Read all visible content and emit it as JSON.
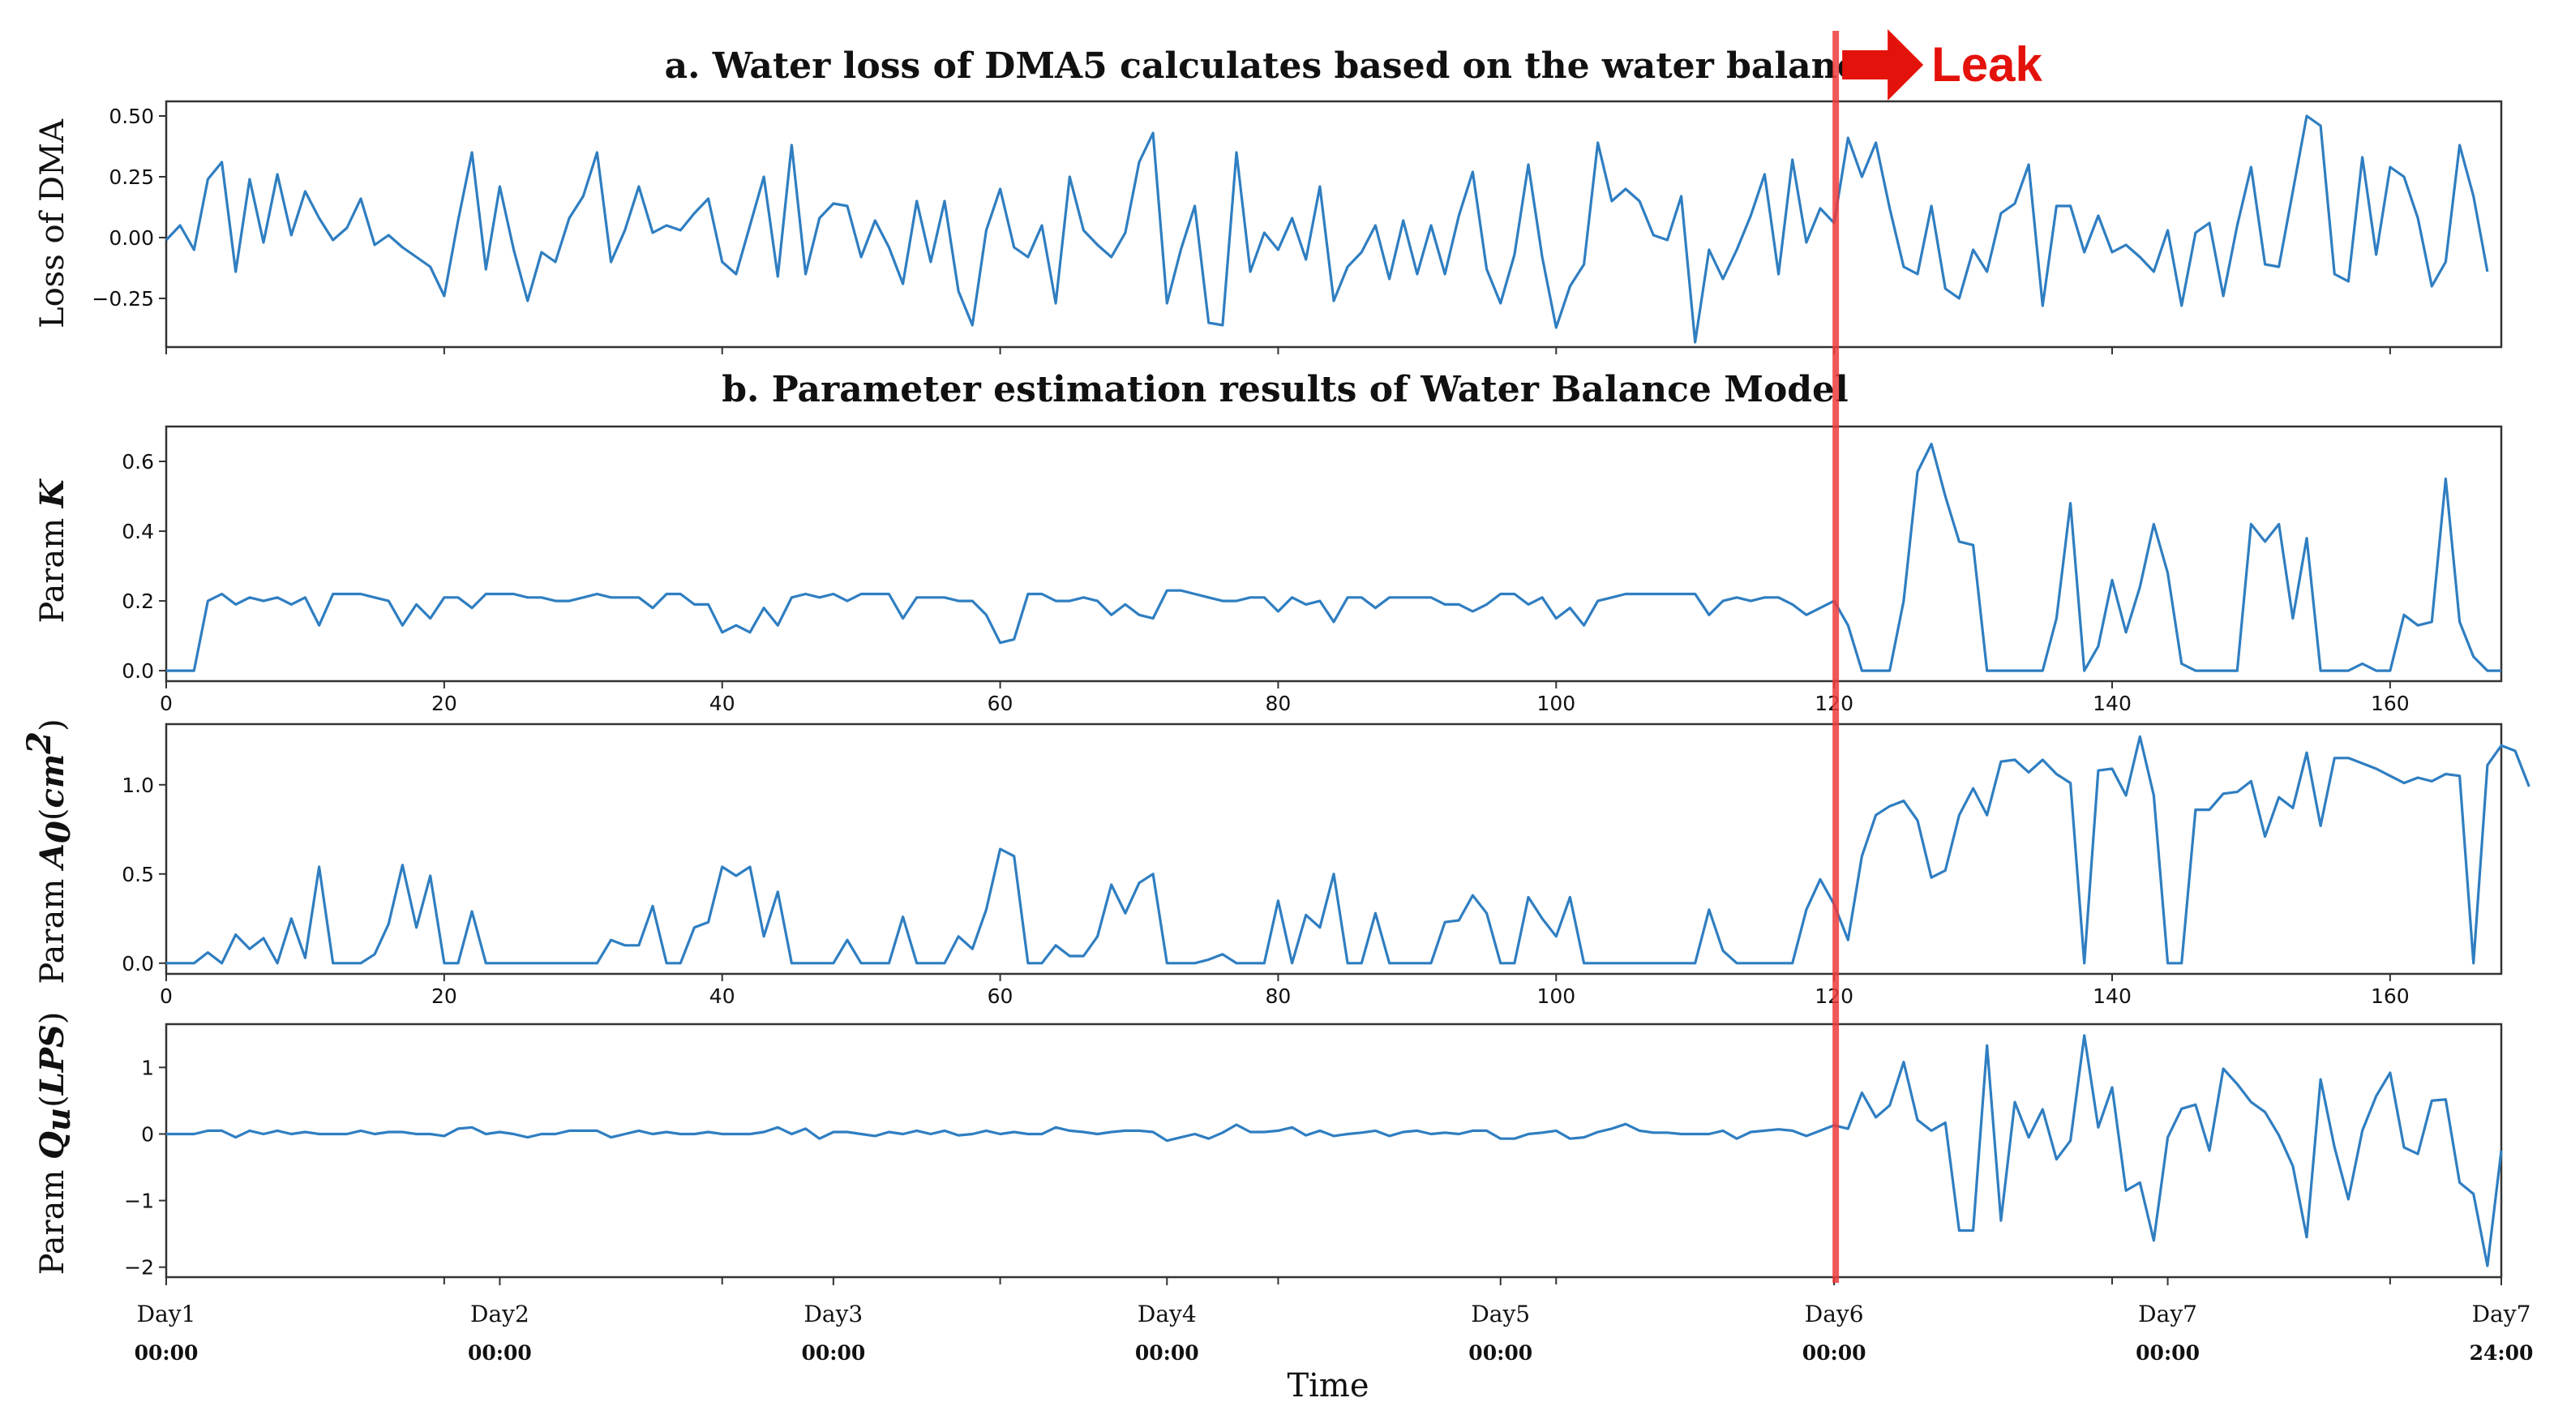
{
  "figure_title_a": "a. Water loss of  DMA5 calculates based on the water balance",
  "figure_title_b": "b. Parameter estimation results of Water Balance Model",
  "leak_label": "Leak",
  "x_axis_label": "Time",
  "colors": {
    "series": "#2f7ec1",
    "leak_line": "#ee3b3b",
    "leak_arrow": "#e3120b",
    "axes": "#333333"
  },
  "time_ticks": [
    {
      "day": "Day1",
      "time": "00:00",
      "hour": 0
    },
    {
      "day": "Day2",
      "time": "00:00",
      "hour": 24
    },
    {
      "day": "Day3",
      "time": "00:00",
      "hour": 48
    },
    {
      "day": "Day4",
      "time": "00:00",
      "hour": 72
    },
    {
      "day": "Day5",
      "time": "00:00",
      "hour": 96
    },
    {
      "day": "Day6",
      "time": "00:00",
      "hour": 120
    },
    {
      "day": "Day7",
      "time": "00:00",
      "hour": 144
    },
    {
      "day": "Day7",
      "time": "24:00",
      "hour": 168
    }
  ],
  "leak_hour": 120,
  "chart_data": [
    {
      "type": "line",
      "panel": "a",
      "title": "a. Water loss of  DMA5 calculates based on the water balance",
      "ylabel": "Loss of  DMA",
      "ylabel_parts": [
        "Loss of  DMA"
      ],
      "xlim": [
        0,
        168
      ],
      "ylim": [
        -0.45,
        0.56
      ],
      "yticks": [
        -0.25,
        0,
        0.25,
        0.5
      ],
      "ytick_labels": [
        "−0.25",
        "0.00",
        "0.25",
        "0.50"
      ],
      "show_xtick_labels": false,
      "x_start": 0,
      "values": [
        -0.01,
        0.05,
        -0.05,
        0.24,
        0.31,
        -0.14,
        0.24,
        -0.02,
        0.26,
        0.01,
        0.19,
        0.08,
        -0.01,
        0.04,
        0.16,
        -0.03,
        0.01,
        -0.04,
        -0.08,
        -0.12,
        -0.24,
        0.07,
        0.35,
        -0.13,
        0.21,
        -0.05,
        -0.26,
        -0.06,
        -0.1,
        0.08,
        0.17,
        0.35,
        -0.1,
        0.03,
        0.21,
        0.02,
        0.05,
        0.03,
        0.1,
        0.16,
        -0.1,
        -0.15,
        0.05,
        0.25,
        -0.16,
        0.38,
        -0.15,
        0.08,
        0.14,
        0.13,
        -0.08,
        0.07,
        -0.04,
        -0.19,
        0.15,
        -0.1,
        0.15,
        -0.22,
        -0.36,
        0.03,
        0.2,
        -0.04,
        -0.08,
        0.05,
        -0.27,
        0.25,
        0.03,
        -0.03,
        -0.08,
        0.02,
        0.31,
        0.43,
        -0.27,
        -0.05,
        0.13,
        -0.35,
        -0.36,
        0.35,
        -0.14,
        0.02,
        -0.05,
        0.08,
        -0.09,
        0.21,
        -0.26,
        -0.12,
        -0.06,
        0.05,
        -0.17,
        0.07,
        -0.15,
        0.05,
        -0.15,
        0.09,
        0.27,
        -0.13,
        -0.27,
        -0.07,
        0.3,
        -0.08,
        -0.37,
        -0.2,
        -0.11,
        0.39,
        0.15,
        0.2,
        0.15,
        0.01,
        -0.01,
        0.17,
        -0.43,
        -0.05,
        -0.17,
        -0.05,
        0.09,
        0.26,
        -0.15,
        0.32,
        -0.02,
        0.12,
        0.06,
        0.41,
        0.25,
        0.39,
        0.12,
        -0.12,
        -0.15,
        0.13,
        -0.21,
        -0.25,
        -0.05,
        -0.14,
        0.1,
        0.14,
        0.3,
        -0.28,
        0.13,
        0.13,
        -0.06,
        0.09,
        -0.06,
        -0.03,
        -0.08,
        -0.14,
        0.03,
        -0.28,
        0.02,
        0.06,
        -0.24,
        0.05,
        0.29,
        -0.11,
        -0.12,
        0.19,
        0.5,
        0.46,
        -0.15,
        -0.18,
        0.33,
        -0.07,
        0.29,
        0.25,
        0.08,
        -0.2,
        -0.1,
        0.38,
        0.17,
        -0.14
      ]
    },
    {
      "type": "line",
      "panel": "b1",
      "ylabel": "Param K",
      "ylabel_parts": [
        "Param ",
        "K"
      ],
      "xlim": [
        0,
        168
      ],
      "ylim": [
        -0.03,
        0.7
      ],
      "yticks": [
        0,
        0.2,
        0.4,
        0.6
      ],
      "ytick_labels": [
        "0.0",
        "0.2",
        "0.4",
        "0.6"
      ],
      "xticks": [
        0,
        20,
        40,
        60,
        80,
        100,
        120,
        140,
        160
      ],
      "xtick_labels": [
        "0",
        "20",
        "40",
        "60",
        "80",
        "100",
        "120",
        "140",
        "160"
      ],
      "show_xtick_labels": true,
      "x_start": 0,
      "values": [
        0,
        0,
        0,
        0.2,
        0.22,
        0.19,
        0.21,
        0.2,
        0.21,
        0.19,
        0.21,
        0.13,
        0.22,
        0.22,
        0.22,
        0.21,
        0.2,
        0.13,
        0.19,
        0.15,
        0.21,
        0.21,
        0.18,
        0.22,
        0.22,
        0.22,
        0.21,
        0.21,
        0.2,
        0.2,
        0.21,
        0.22,
        0.21,
        0.21,
        0.21,
        0.18,
        0.22,
        0.22,
        0.19,
        0.19,
        0.11,
        0.13,
        0.11,
        0.18,
        0.13,
        0.21,
        0.22,
        0.21,
        0.22,
        0.2,
        0.22,
        0.22,
        0.22,
        0.15,
        0.21,
        0.21,
        0.21,
        0.2,
        0.2,
        0.16,
        0.08,
        0.09,
        0.22,
        0.22,
        0.2,
        0.2,
        0.21,
        0.2,
        0.16,
        0.19,
        0.16,
        0.15,
        0.23,
        0.23,
        0.22,
        0.21,
        0.2,
        0.2,
        0.21,
        0.21,
        0.17,
        0.21,
        0.19,
        0.2,
        0.14,
        0.21,
        0.21,
        0.18,
        0.21,
        0.21,
        0.21,
        0.21,
        0.19,
        0.19,
        0.17,
        0.19,
        0.22,
        0.22,
        0.19,
        0.21,
        0.15,
        0.18,
        0.13,
        0.2,
        0.21,
        0.22,
        0.22,
        0.22,
        0.22,
        0.22,
        0.22,
        0.16,
        0.2,
        0.21,
        0.2,
        0.21,
        0.21,
        0.19,
        0.16,
        0.18,
        0.2,
        0.13,
        0,
        0,
        0,
        0.2,
        0.57,
        0.65,
        0.5,
        0.37,
        0.36,
        0,
        0,
        0,
        0,
        0,
        0.15,
        0.48,
        0,
        0.07,
        0.26,
        0.11,
        0.24,
        0.42,
        0.28,
        0.02,
        0,
        0,
        0,
        0,
        0.42,
        0.37,
        0.42,
        0.15,
        0.38,
        0,
        0,
        0,
        0.02,
        0,
        0,
        0.16,
        0.13,
        0.14,
        0.55,
        0.14,
        0.04,
        0,
        0
      ]
    },
    {
      "type": "line",
      "panel": "b2",
      "ylabel": "Param A0(cm2)",
      "ylabel_parts": [
        "Param ",
        "A",
        "0",
        "(",
        "cm",
        "2",
        ")"
      ],
      "xlim": [
        0,
        168
      ],
      "ylim": [
        -0.06,
        1.34
      ],
      "yticks": [
        0,
        0.5,
        1.0
      ],
      "ytick_labels": [
        "0.0",
        "0.5",
        "1.0"
      ],
      "xticks": [
        0,
        20,
        40,
        60,
        80,
        100,
        120,
        140,
        160
      ],
      "xtick_labels": [
        "0",
        "20",
        "40",
        "60",
        "80",
        "100",
        "120",
        "140",
        "160"
      ],
      "show_xtick_labels": true,
      "x_start": 0,
      "values": [
        0,
        0,
        0,
        0.06,
        0,
        0.16,
        0.08,
        0.14,
        0,
        0.25,
        0.03,
        0.54,
        0,
        0,
        0,
        0.05,
        0.22,
        0.55,
        0.2,
        0.49,
        0,
        0,
        0.29,
        0,
        0,
        0,
        0,
        0,
        0,
        0,
        0,
        0,
        0.13,
        0.1,
        0.1,
        0.32,
        0,
        0,
        0.2,
        0.23,
        0.54,
        0.49,
        0.54,
        0.15,
        0.4,
        0,
        0,
        0,
        0,
        0.13,
        0,
        0,
        0,
        0.26,
        0,
        0,
        0,
        0.15,
        0.08,
        0.3,
        0.64,
        0.6,
        0,
        0,
        0.1,
        0.04,
        0.04,
        0.15,
        0.44,
        0.28,
        0.45,
        0.5,
        0,
        0,
        0,
        0.02,
        0.05,
        0,
        0,
        0,
        0.35,
        0,
        0.27,
        0.2,
        0.5,
        0,
        0,
        0.28,
        0,
        0,
        0,
        0,
        0.23,
        0.24,
        0.38,
        0.28,
        0,
        0,
        0.37,
        0.25,
        0.15,
        0.37,
        0,
        0,
        0,
        0,
        0,
        0,
        0,
        0,
        0,
        0.3,
        0.07,
        0,
        0,
        0,
        0,
        0,
        0.3,
        0.47,
        0.33,
        0.13,
        0.6,
        0.83,
        0.88,
        0.91,
        0.8,
        0.48,
        0.52,
        0.83,
        0.98,
        0.83,
        1.13,
        1.14,
        1.07,
        1.14,
        1.06,
        1.01,
        0,
        1.08,
        1.09,
        0.94,
        1.27,
        0.94,
        0,
        0,
        0.86,
        0.86,
        0.95,
        0.96,
        1.02,
        0.71,
        0.93,
        0.87,
        1.18,
        0.77,
        1.15,
        1.15,
        1.12,
        1.09,
        1.05,
        1.01,
        1.04,
        1.02,
        1.06,
        1.05,
        0,
        1.11,
        1.22,
        1.19,
        0.99
      ]
    },
    {
      "type": "line",
      "panel": "b3",
      "ylabel": "Param Qu(LPS)",
      "ylabel_parts": [
        "Param ",
        "Q",
        "u",
        "(",
        "LPS",
        ")"
      ],
      "xlim": [
        0,
        168
      ],
      "ylim": [
        -2.15,
        1.65
      ],
      "yticks": [
        -2,
        -1,
        0,
        1
      ],
      "ytick_labels": [
        "−2",
        "−1",
        "0",
        "1"
      ],
      "show_xtick_labels": false,
      "x_start": 0,
      "values": [
        0,
        0,
        0,
        0.05,
        0.05,
        -0.05,
        0.05,
        0,
        0.05,
        0,
        0.03,
        0,
        0,
        0,
        0.05,
        0,
        0.03,
        0.03,
        0,
        0,
        -0.03,
        0.08,
        0.1,
        0,
        0.03,
        0,
        -0.05,
        0,
        0,
        0.05,
        0.05,
        0.05,
        -0.05,
        0,
        0.05,
        0,
        0.03,
        0,
        0,
        0.03,
        0,
        0,
        0,
        0.03,
        0.1,
        0,
        0.08,
        -0.07,
        0.03,
        0.03,
        0,
        -0.03,
        0.03,
        0,
        0.05,
        0,
        0.05,
        -0.02,
        0,
        0.05,
        0,
        0.03,
        0,
        0,
        0.1,
        0.05,
        0.03,
        0,
        0.03,
        0.05,
        0.05,
        0.03,
        -0.1,
        -0.05,
        0,
        -0.07,
        0.02,
        0.14,
        0.03,
        0.03,
        0.05,
        0.1,
        -0.02,
        0.05,
        -0.03,
        0,
        0.02,
        0.05,
        -0.03,
        0.03,
        0.05,
        0,
        0.02,
        0,
        0.05,
        0.05,
        -0.07,
        -0.07,
        0,
        0.02,
        0.05,
        -0.07,
        -0.05,
        0.03,
        0.08,
        0.15,
        0.05,
        0.02,
        0.02,
        0,
        0,
        0,
        0.05,
        -0.07,
        0.03,
        0.05,
        0.07,
        0.05,
        -0.03,
        0.05,
        0.13,
        0.08,
        0.62,
        0.25,
        0.43,
        1.08,
        0.21,
        0.05,
        0.17,
        -1.45,
        -1.45,
        1.33,
        -1.3,
        0.48,
        -0.05,
        0.37,
        -0.38,
        -0.1,
        1.48,
        0.1,
        0.7,
        -0.85,
        -0.73,
        -1.6,
        -0.05,
        0.38,
        0.44,
        -0.25,
        0.98,
        0.75,
        0.48,
        0.33,
        -0.02,
        -0.48,
        -1.55,
        0.82,
        -0.2,
        -0.98,
        0.05,
        0.57,
        0.92,
        -0.2,
        -0.3,
        0.5,
        0.52,
        -0.73,
        -0.9,
        -1.98,
        -0.25
      ]
    }
  ]
}
